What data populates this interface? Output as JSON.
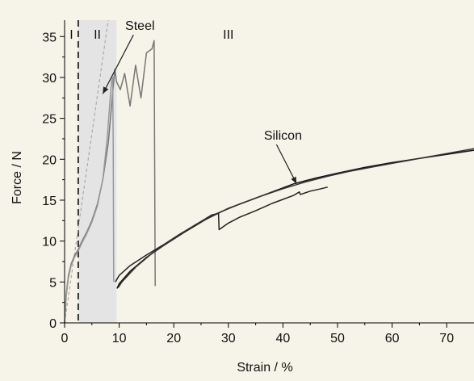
{
  "chart_data": {
    "type": "line",
    "xlabel": "Strain / %",
    "ylabel": "Force / N",
    "xlim": [
      0,
      75
    ],
    "ylim": [
      0,
      37
    ],
    "xticks": [
      0,
      10,
      20,
      30,
      40,
      50,
      60,
      70
    ],
    "yticks": [
      0,
      5,
      10,
      15,
      20,
      25,
      30,
      35
    ],
    "grid": false,
    "legend": "none",
    "regions": [
      {
        "label": "I",
        "x0": 0,
        "x1": 2.5
      },
      {
        "label": "II",
        "x0": 2.5,
        "x1": 9.5,
        "shaded": true
      },
      {
        "label": "III",
        "x0": 9.5,
        "x1": 75
      }
    ],
    "boundary_x": 2.5,
    "reference_line": {
      "x": [
        0,
        8
      ],
      "y": [
        0,
        37
      ]
    },
    "annotations": [
      {
        "text": "Steel",
        "target_x": 7,
        "target_y": 28,
        "label_x": 13.8,
        "label_y": 35.8
      },
      {
        "text": "Silicon",
        "target_x": 42.5,
        "target_y": 17.0,
        "label_x": 40.0,
        "label_y": 22.4
      }
    ],
    "series": [
      {
        "color": "#777777",
        "x": [
          0,
          0.3,
          0.7,
          1.2,
          1.8,
          2.5,
          3.2,
          4,
          5,
          6,
          7,
          8,
          8.6,
          9.0,
          9.2,
          9.3,
          9.5,
          10.2,
          11,
          12,
          13,
          14,
          15,
          16,
          16.4,
          16.5,
          16.6
        ],
        "y": [
          0,
          3.5,
          5.8,
          7.2,
          8.2,
          9,
          10,
          11,
          12.5,
          14.5,
          17.5,
          22,
          26.5,
          29.5,
          31,
          30.5,
          29.5,
          28.5,
          30.5,
          26.5,
          31.5,
          27.5,
          33,
          33.5,
          34.5,
          20,
          4.5
        ]
      },
      {
        "color": "#999999",
        "x": [
          0,
          0.3,
          0.7,
          1.2,
          1.8,
          2.5,
          3.2,
          4,
          5,
          6,
          7,
          7.8,
          8.3,
          8.6,
          8.8,
          8.9,
          9.0
        ],
        "y": [
          0,
          3.2,
          5.5,
          7.0,
          8.0,
          8.8,
          9.8,
          10.8,
          12.3,
          14.3,
          17.5,
          22.5,
          27,
          29.5,
          30.0,
          22,
          5.0
        ]
      },
      {
        "color": "#222222",
        "x": [
          9.3,
          10,
          12,
          15,
          18,
          21,
          24,
          27,
          28.2,
          28.3,
          30,
          32,
          35,
          38,
          40,
          42,
          43,
          43.2,
          45,
          47,
          48.2
        ],
        "y": [
          5.0,
          5.8,
          7.0,
          8.3,
          9.5,
          10.8,
          12.0,
          13.2,
          13.4,
          11.4,
          12.2,
          12.9,
          13.7,
          14.6,
          15.1,
          15.6,
          16.0,
          15.7,
          16.1,
          16.4,
          16.6
        ]
      },
      {
        "color": "#111111",
        "x": [
          9.6,
          10,
          12,
          15,
          18,
          22,
          26,
          30,
          34,
          38,
          42,
          46,
          50,
          55,
          60,
          65,
          70,
          75
        ],
        "y": [
          4.2,
          4.8,
          6.3,
          8.0,
          9.4,
          11.1,
          12.7,
          14.0,
          15.0,
          16.0,
          17.0,
          17.7,
          18.3,
          19.0,
          19.6,
          20.1,
          20.6,
          21.1
        ]
      },
      {
        "color": "#333333",
        "x": [
          9.8,
          10.5,
          13,
          16,
          20,
          24,
          28,
          32,
          36,
          40,
          44,
          48,
          52,
          56,
          60,
          65,
          70,
          75
        ],
        "y": [
          4.3,
          5.0,
          6.8,
          8.5,
          10.3,
          12.0,
          13.4,
          14.5,
          15.5,
          16.4,
          17.2,
          17.9,
          18.5,
          19.0,
          19.5,
          20.1,
          20.7,
          21.3
        ]
      }
    ]
  }
}
